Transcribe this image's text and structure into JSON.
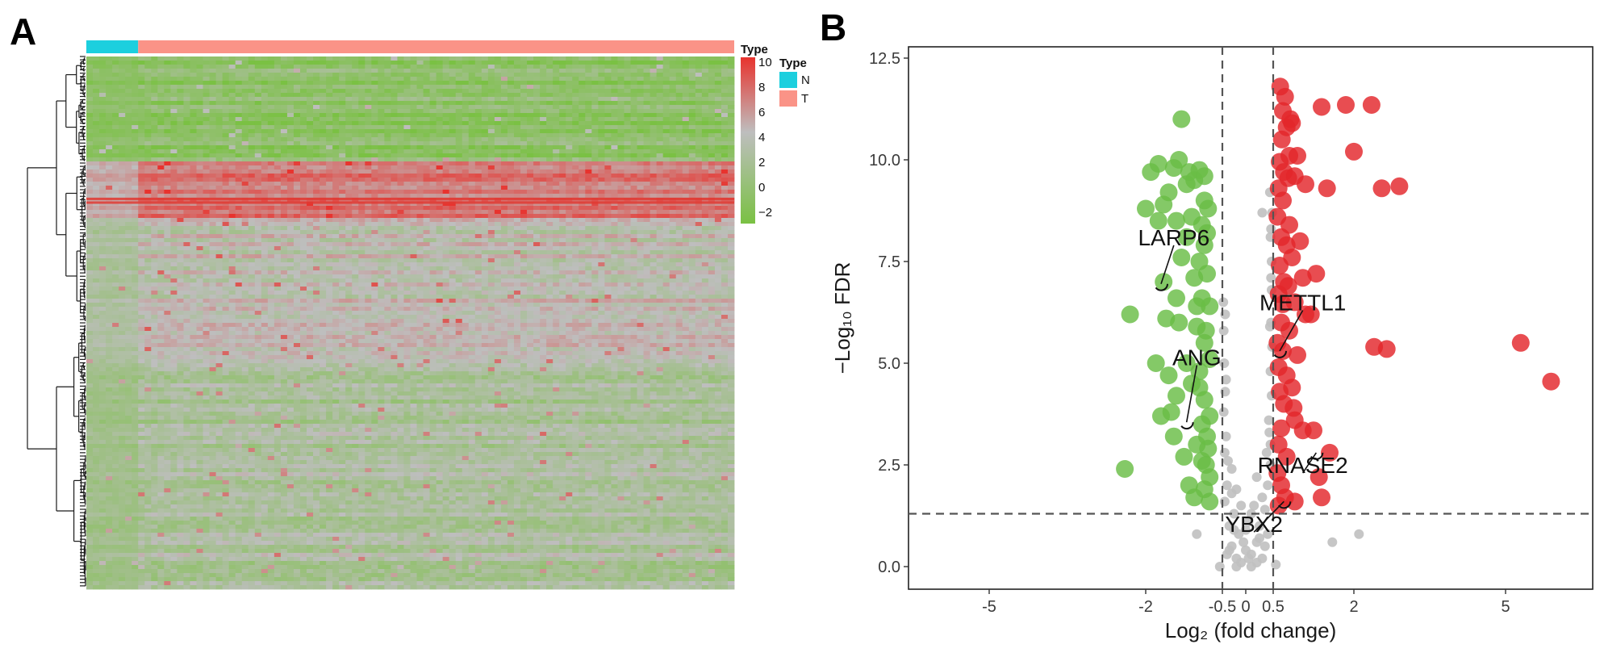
{
  "panels": {
    "a_label": "A",
    "b_label": "B"
  },
  "chart_data": [
    {
      "type": "heatmap",
      "panel": "A",
      "annotation_bar": {
        "title": "Type",
        "groups": [
          {
            "name": "N",
            "color": "#1ccfde",
            "fraction": 0.08
          },
          {
            "name": "T",
            "color": "#fa9387",
            "fraction": 0.92
          }
        ]
      },
      "color_scale": {
        "title": "Type",
        "ticks": [
          "10",
          "8",
          "6",
          "4",
          "2",
          "0",
          "−2"
        ],
        "low_color": "#7ac143",
        "mid_color": "#bebebe",
        "high_color": "#e8332e",
        "range": [
          -3,
          10
        ]
      },
      "legend": {
        "title": "Type",
        "items": [
          {
            "name": "N",
            "color": "#1ccfde"
          },
          {
            "name": "T",
            "color": "#fa9387"
          }
        ]
      },
      "row_band_means": [
        {
          "from": 0.0,
          "to": 0.19,
          "mean": -1.2,
          "type": "low"
        },
        {
          "from": 0.19,
          "to": 0.3,
          "mean": 6.5,
          "type": "high"
        },
        {
          "from": 0.3,
          "to": 0.57,
          "mean": 2.8,
          "type": "mid"
        },
        {
          "from": 0.57,
          "to": 1.0,
          "mean": 1.3,
          "type": "mid-low"
        }
      ]
    },
    {
      "type": "scatter",
      "panel": "B",
      "xlabel": "Log₂ (fold change)",
      "ylabel": "−Log₁₀ FDR",
      "x_ticks": [
        "-5",
        "-2",
        "-0.5",
        "0",
        "0.5",
        "2",
        "5"
      ],
      "x_tick_positions_data": [
        -5,
        -2,
        -0.5,
        0,
        0.5,
        2,
        5
      ],
      "y_ticks": [
        "0.0",
        "2.5",
        "5.0",
        "7.5",
        "10.0",
        "12.5"
      ],
      "x_scale": "symmetric-log",
      "xlim": [
        -6,
        6
      ],
      "ylim": [
        -0.55,
        12.7
      ],
      "thresholds": {
        "x": [
          -0.5,
          0.5
        ],
        "y": 1.3
      },
      "colors": {
        "down": "#69bd45",
        "up": "#e3262b",
        "ns": "#c0c0c0"
      },
      "series": [
        {
          "name": "down",
          "points": [
            [
              -1.35,
              10.0
            ],
            [
              -1.15,
              9.7
            ],
            [
              -1.2,
              9.4
            ],
            [
              -1.3,
              11.0
            ],
            [
              -1.05,
              9.5
            ],
            [
              -0.95,
              9.75
            ],
            [
              -1.45,
              9.8
            ],
            [
              -1.1,
              8.6
            ],
            [
              -1.75,
              9.9
            ],
            [
              -2.0,
              8.8
            ],
            [
              -1.65,
              8.9
            ],
            [
              -1.4,
              8.5
            ],
            [
              -1.2,
              8.1
            ],
            [
              -0.9,
              8.4
            ],
            [
              -0.85,
              7.9
            ],
            [
              -0.95,
              7.5
            ],
            [
              -1.3,
              7.6
            ],
            [
              -1.05,
              7.1
            ],
            [
              -1.4,
              6.6
            ],
            [
              -0.9,
              6.6
            ],
            [
              -0.75,
              6.4
            ],
            [
              -1.6,
              6.1
            ],
            [
              -1.35,
              6.0
            ],
            [
              -1.0,
              5.9
            ],
            [
              -0.85,
              5.5
            ],
            [
              -0.75,
              5.1
            ],
            [
              -0.95,
              4.8
            ],
            [
              -1.2,
              5.0
            ],
            [
              -1.55,
              4.7
            ],
            [
              -1.4,
              4.2
            ],
            [
              -0.85,
              4.1
            ],
            [
              -0.75,
              3.7
            ],
            [
              -1.7,
              3.7
            ],
            [
              -1.45,
              3.2
            ],
            [
              -1.0,
              3.0
            ],
            [
              -0.8,
              3.2
            ],
            [
              -1.25,
              2.7
            ],
            [
              -0.9,
              2.6
            ],
            [
              -0.75,
              2.2
            ],
            [
              -1.15,
              2.0
            ],
            [
              -0.85,
              1.9
            ],
            [
              -1.05,
              1.7
            ],
            [
              -0.75,
              1.6
            ],
            [
              -2.4,
              2.4
            ],
            [
              -1.65,
              7.0
            ],
            [
              -1.9,
              9.7
            ],
            [
              -1.55,
              9.2
            ],
            [
              -0.85,
              9.0
            ],
            [
              -2.3,
              6.2
            ],
            [
              -1.8,
              5.0
            ],
            [
              -1.1,
              4.5
            ],
            [
              -0.95,
              4.4
            ],
            [
              -0.8,
              7.2
            ],
            [
              -0.78,
              8.8
            ],
            [
              -1.0,
              6.4
            ],
            [
              -0.82,
              5.8
            ],
            [
              -1.5,
              3.8
            ],
            [
              -0.9,
              3.5
            ],
            [
              -0.78,
              2.9
            ],
            [
              -0.82,
              2.5
            ],
            [
              -0.8,
              8.2
            ],
            [
              -0.85,
              9.6
            ],
            [
              -1.75,
              8.5
            ]
          ],
          "radius": 11
        },
        {
          "name": "up",
          "points": [
            [
              0.63,
              11.8
            ],
            [
              0.72,
              11.55
            ],
            [
              0.68,
              11.2
            ],
            [
              0.75,
              10.8
            ],
            [
              0.66,
              10.5
            ],
            [
              0.85,
              10.9
            ],
            [
              0.8,
              10.1
            ],
            [
              0.62,
              9.95
            ],
            [
              0.7,
              9.7
            ],
            [
              0.6,
              9.3
            ],
            [
              0.78,
              9.55
            ],
            [
              0.9,
              9.6
            ],
            [
              1.1,
              9.4
            ],
            [
              0.68,
              9.0
            ],
            [
              0.58,
              8.6
            ],
            [
              0.8,
              8.4
            ],
            [
              0.65,
              8.1
            ],
            [
              0.75,
              7.9
            ],
            [
              0.62,
              7.4
            ],
            [
              0.85,
              7.6
            ],
            [
              1.05,
              7.1
            ],
            [
              1.3,
              7.2
            ],
            [
              0.7,
              7.0
            ],
            [
              0.6,
              6.7
            ],
            [
              0.9,
              6.5
            ],
            [
              1.1,
              6.2
            ],
            [
              0.65,
              6.0
            ],
            [
              0.8,
              5.8
            ],
            [
              0.58,
              5.5
            ],
            [
              0.68,
              5.3
            ],
            [
              0.95,
              5.2
            ],
            [
              0.6,
              4.9
            ],
            [
              0.75,
              4.7
            ],
            [
              0.85,
              4.4
            ],
            [
              0.62,
              4.3
            ],
            [
              0.7,
              4.0
            ],
            [
              0.9,
              3.6
            ],
            [
              0.65,
              3.4
            ],
            [
              1.05,
              3.35
            ],
            [
              1.25,
              3.35
            ],
            [
              0.6,
              3.0
            ],
            [
              0.75,
              2.7
            ],
            [
              0.58,
              2.3
            ],
            [
              0.65,
              2.0
            ],
            [
              0.72,
              1.7
            ],
            [
              1.4,
              1.7
            ],
            [
              0.6,
              1.5
            ],
            [
              1.4,
              11.3
            ],
            [
              1.85,
              11.35
            ],
            [
              2.35,
              11.35
            ],
            [
              2.0,
              10.2
            ],
            [
              2.55,
              9.3
            ],
            [
              1.5,
              9.3
            ],
            [
              2.9,
              9.35
            ],
            [
              5.3,
              5.5
            ],
            [
              5.9,
              4.55
            ],
            [
              2.4,
              5.4
            ],
            [
              2.65,
              5.35
            ],
            [
              1.55,
              2.8
            ],
            [
              0.9,
              1.6
            ],
            [
              0.82,
              11.0
            ],
            [
              0.95,
              10.1
            ],
            [
              1.2,
              6.2
            ],
            [
              1.0,
              8.0
            ],
            [
              0.68,
              6.45
            ],
            [
              0.88,
              3.9
            ],
            [
              1.35,
              2.2
            ],
            [
              0.78,
              6.9
            ]
          ],
          "radius": 11
        },
        {
          "name": "ns",
          "points": [
            [
              -0.4,
              0.3
            ],
            [
              -0.3,
              0.5
            ],
            [
              -0.2,
              0.2
            ],
            [
              -0.1,
              0.1
            ],
            [
              0.0,
              0.4
            ],
            [
              0.1,
              0.3
            ],
            [
              0.2,
              0.6
            ],
            [
              0.3,
              0.2
            ],
            [
              0.4,
              0.8
            ],
            [
              -0.35,
              1.0
            ],
            [
              -0.25,
              1.3
            ],
            [
              -0.15,
              0.8
            ],
            [
              0.05,
              1.1
            ],
            [
              0.15,
              1.5
            ],
            [
              0.25,
              1.0
            ],
            [
              0.35,
              1.4
            ],
            [
              -0.45,
              1.6
            ],
            [
              -0.4,
              2.0
            ],
            [
              -0.3,
              2.4
            ],
            [
              0.4,
              2.0
            ],
            [
              0.45,
              2.5
            ],
            [
              -0.45,
              2.8
            ],
            [
              -0.42,
              3.2
            ],
            [
              0.45,
              3.0
            ],
            [
              0.42,
              3.6
            ],
            [
              -0.47,
              3.8
            ],
            [
              -0.44,
              4.3
            ],
            [
              0.47,
              4.2
            ],
            [
              0.45,
              4.8
            ],
            [
              -0.46,
              5.0
            ],
            [
              0.48,
              5.4
            ],
            [
              -0.47,
              5.8
            ],
            [
              0.46,
              6.0
            ],
            [
              -0.48,
              6.5
            ],
            [
              0.47,
              6.8
            ],
            [
              0.47,
              7.5
            ],
            [
              0.45,
              8.1
            ],
            [
              0.46,
              8.3
            ],
            [
              0.48,
              8.7
            ],
            [
              0.44,
              9.2
            ],
            [
              0.3,
              8.7
            ],
            [
              -0.2,
              0.0
            ],
            [
              0.1,
              0.0
            ],
            [
              0.2,
              0.1
            ],
            [
              -0.05,
              0.6
            ],
            [
              0.0,
              0.9
            ],
            [
              -0.35,
              0.4
            ],
            [
              0.35,
              0.5
            ],
            [
              -1.0,
              0.8
            ],
            [
              1.6,
              0.6
            ],
            [
              2.1,
              0.8
            ],
            [
              -0.55,
              0.0
            ],
            [
              0.55,
              0.05
            ],
            [
              -0.3,
              1.8
            ],
            [
              0.3,
              1.7
            ],
            [
              -0.2,
              1.9
            ],
            [
              0.2,
              2.2
            ],
            [
              -0.38,
              2.6
            ],
            [
              0.38,
              2.8
            ],
            [
              0.1,
              1.3
            ],
            [
              -0.1,
              1.5
            ],
            [
              0.05,
              0.2
            ],
            [
              -0.25,
              0.9
            ],
            [
              0.25,
              0.7
            ],
            [
              -0.42,
              4.6
            ],
            [
              0.43,
              3.3
            ],
            [
              0.44,
              5.9
            ],
            [
              -0.44,
              6.2
            ],
            [
              0.46,
              7.1
            ]
          ],
          "radius": 6
        }
      ],
      "labels": [
        {
          "gene": "LARP6",
          "x": -1.7,
          "y": 6.95,
          "text_x": -1.45,
          "text_y": 7.9
        },
        {
          "gene": "METTL1",
          "x": 0.62,
          "y": 5.3,
          "text_x": 1.05,
          "text_y": 6.3
        },
        {
          "gene": "ANG",
          "x": -1.2,
          "y": 3.55,
          "text_x": -1.0,
          "text_y": 4.95
        },
        {
          "gene": "RNASE2",
          "x": 1.3,
          "y": 2.8,
          "text_x": 1.05,
          "text_y": 2.3
        },
        {
          "gene": "YBX2",
          "x": 0.7,
          "y": 1.6,
          "text_x": 0.15,
          "text_y": 0.85
        }
      ]
    }
  ]
}
